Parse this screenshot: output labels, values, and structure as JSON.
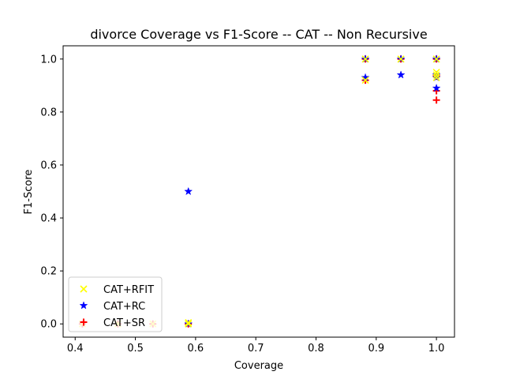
{
  "chart_data": {
    "type": "scatter",
    "title": "divorce Coverage vs F1-Score -- CAT -- Non Recursive",
    "xlabel": "Coverage",
    "ylabel": "F1-Score",
    "xlim": [
      0.38,
      1.03
    ],
    "ylim": [
      -0.05,
      1.05
    ],
    "xticks": [
      "0.4",
      "0.5",
      "0.6",
      "0.7",
      "0.8",
      "0.9",
      "1.0"
    ],
    "yticks": [
      "0.0",
      "0.2",
      "0.4",
      "0.6",
      "0.8",
      "1.0"
    ],
    "grid": false,
    "legend_position": "lower-left",
    "series": [
      {
        "name": "CAT+RFIT",
        "color": "#ffff00",
        "marker": "x",
        "points": [
          [
            0.412,
            0.0
          ],
          [
            0.471,
            0.0
          ],
          [
            0.529,
            0.0
          ],
          [
            0.588,
            0.0
          ],
          [
            0.588,
            0.005
          ],
          [
            0.882,
            0.92
          ],
          [
            0.882,
            1.0
          ],
          [
            0.941,
            1.0
          ],
          [
            1.0,
            1.0
          ],
          [
            1.0,
            0.95
          ],
          [
            1.0,
            0.94
          ],
          [
            1.0,
            0.93
          ]
        ]
      },
      {
        "name": "CAT+RC",
        "color": "#0000ff",
        "marker": "star",
        "points": [
          [
            0.588,
            0.5
          ],
          [
            0.588,
            0.0
          ],
          [
            0.882,
            1.0
          ],
          [
            0.882,
            0.93
          ],
          [
            0.941,
            1.0
          ],
          [
            0.941,
            0.94
          ],
          [
            1.0,
            1.0
          ],
          [
            1.0,
            0.94
          ],
          [
            1.0,
            0.93
          ],
          [
            1.0,
            0.89
          ]
        ]
      },
      {
        "name": "CAT+SR",
        "color": "#ff0000",
        "marker": "plus",
        "points": [
          [
            0.412,
            0.0
          ],
          [
            0.471,
            0.0
          ],
          [
            0.529,
            0.0
          ],
          [
            0.588,
            0.0
          ],
          [
            0.882,
            1.0
          ],
          [
            0.882,
            0.92
          ],
          [
            0.941,
            1.0
          ],
          [
            1.0,
            1.0
          ],
          [
            1.0,
            0.94
          ],
          [
            1.0,
            0.935
          ],
          [
            1.0,
            0.88
          ],
          [
            1.0,
            0.845
          ]
        ]
      }
    ]
  }
}
